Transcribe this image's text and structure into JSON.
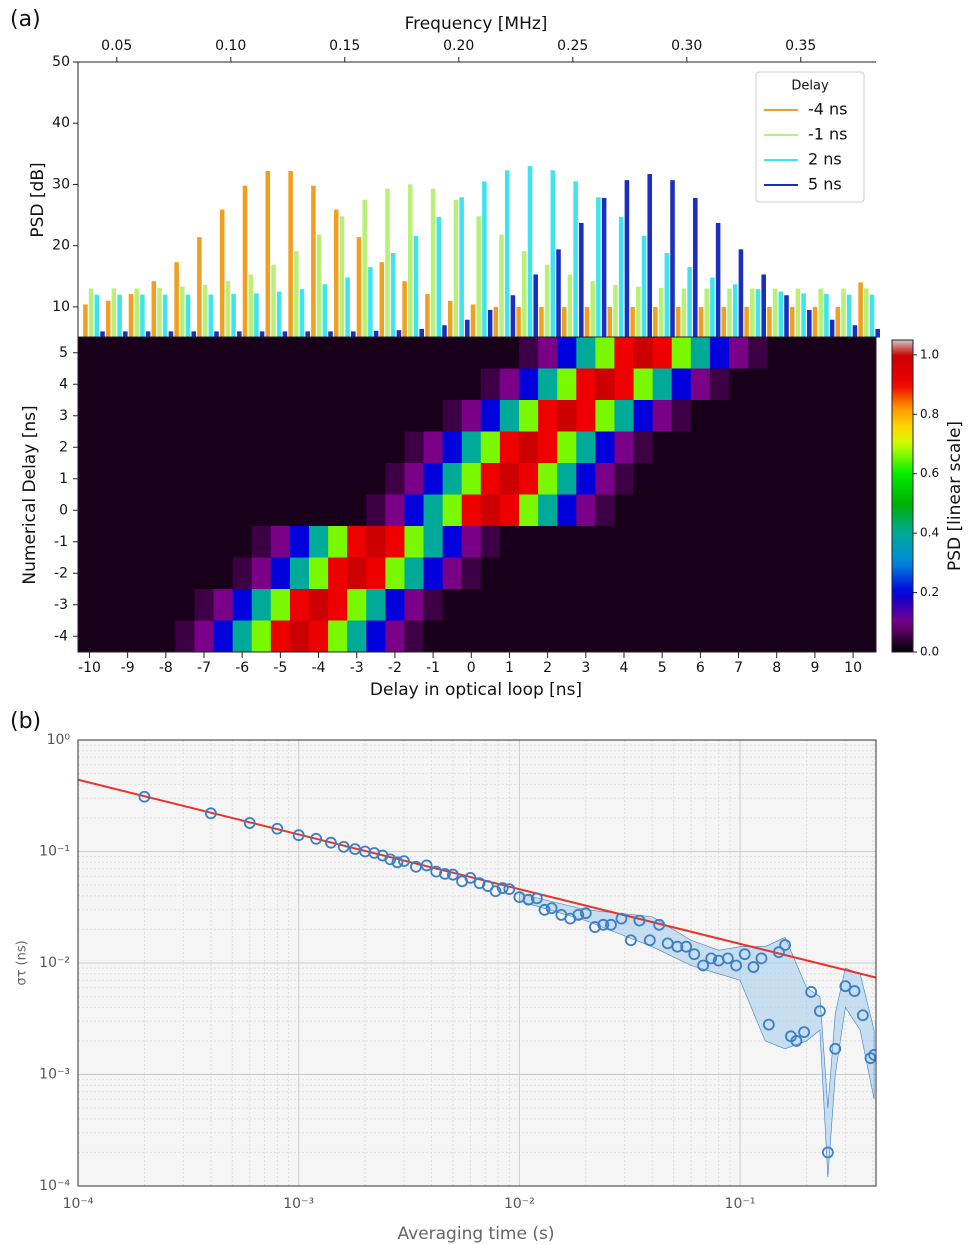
{
  "panel_labels": [
    "(a)",
    "(b)"
  ],
  "chart_data": [
    {
      "type": "bar",
      "xlabel": "Frequency [MHz]",
      "ylabel": "PSD [dB]",
      "xlim": [
        0.033,
        0.383
      ],
      "xticks": [
        0.05,
        {
          "value": 0.1,
          "label": "0.10"
        },
        0.15,
        {
          "value": 0.2,
          "label": "0.20"
        },
        0.25,
        {
          "value": 0.3,
          "label": "0.30"
        },
        0.35
      ],
      "ylim": [
        5,
        50
      ],
      "yticks": [
        10,
        20,
        30,
        40,
        50
      ],
      "legend_title": "Delay",
      "legend": "upper right",
      "x": [
        0.04,
        0.05,
        0.06,
        0.07,
        0.08,
        0.09,
        0.1,
        0.11,
        0.12,
        0.13,
        0.14,
        0.15,
        0.16,
        0.17,
        0.18,
        0.19,
        0.2,
        0.21,
        0.22,
        0.23,
        0.24,
        0.25,
        0.26,
        0.27,
        0.28,
        0.29,
        0.3,
        0.31,
        0.32,
        0.33,
        0.34,
        0.35,
        0.36,
        0.37,
        0.38
      ],
      "series": [
        {
          "name": "-4 ns",
          "color": "#f0a020",
          "values": [
            10.4,
            11.0,
            12.1,
            14.2,
            17.3,
            21.4,
            25.9,
            29.8,
            32.2,
            32.2,
            29.8,
            25.9,
            21.4,
            17.3,
            14.2,
            12.1,
            11.0,
            10.4,
            10,
            10,
            10,
            10,
            10,
            10,
            10,
            10,
            10,
            10,
            10,
            10,
            10,
            10,
            10,
            10,
            14
          ]
        },
        {
          "name": "-1 ns",
          "color": "#b8f078",
          "values": [
            13.0,
            13.0,
            13.0,
            13.1,
            13.3,
            13.6,
            14.2,
            15.3,
            16.9,
            19.1,
            21.8,
            24.8,
            27.5,
            29.3,
            30,
            29.3,
            27.5,
            24.8,
            21.8,
            19.1,
            16.9,
            15.3,
            14.2,
            13.6,
            13.3,
            13.1,
            13,
            13,
            13,
            13,
            13,
            13,
            13,
            13,
            13
          ]
        },
        {
          "name": "2 ns",
          "color": "#40e4f0",
          "values": [
            12,
            12,
            12,
            12,
            12,
            12,
            12.1,
            12.2,
            12.5,
            12.9,
            13.7,
            14.8,
            16.5,
            18.8,
            21.6,
            24.7,
            27.9,
            30.5,
            32.3,
            33,
            32.3,
            30.5,
            27.9,
            24.7,
            21.6,
            18.8,
            16.5,
            14.8,
            13.7,
            12.9,
            12.5,
            12.2,
            12.1,
            12,
            12
          ]
        },
        {
          "name": "5 ns",
          "color": "#1a2ec0",
          "values": [
            6,
            6,
            6,
            6,
            6,
            6,
            6,
            6,
            6,
            6,
            6,
            6.0,
            6.1,
            6.2,
            6.4,
            7.0,
            7.9,
            9.5,
            11.9,
            15.3,
            19.4,
            23.7,
            27.8,
            30.7,
            31.7,
            30.7,
            27.8,
            23.7,
            19.4,
            15.3,
            11.9,
            9.5,
            7.9,
            7.0,
            6.4
          ]
        }
      ]
    },
    {
      "type": "heatmap",
      "xlabel": "Delay in optical loop [ns]",
      "ylabel": "Numerical Delay [ns]",
      "colorbar_label": "PSD [linear scale]",
      "colormap": "nipy_spectral",
      "xlim": [
        -10.3,
        10.6
      ],
      "xticks": [
        -10,
        -9,
        -8,
        -7,
        -6,
        -5,
        -4,
        -3,
        -2,
        -1,
        0,
        1,
        2,
        3,
        4,
        5,
        6,
        7,
        8,
        9,
        10
      ],
      "ylim": [
        -4.5,
        5.5
      ],
      "yticks": [
        -4,
        -3,
        -2,
        -1,
        0,
        1,
        2,
        3,
        4,
        5
      ],
      "clim": [
        0,
        1.05
      ],
      "cticks": [
        {
          "value": 0,
          "label": "0.0"
        },
        0.2,
        0.4,
        0.6,
        0.8,
        {
          "value": 1,
          "label": "1.0"
        }
      ],
      "x": [
        -10.5,
        -10,
        -9.5,
        -9,
        -8.5,
        -8,
        -7.5,
        -7,
        -6.5,
        -6,
        -5.5,
        -5,
        -4.5,
        -4,
        -3.5,
        -3,
        -2.5,
        -2,
        -1.5,
        -1,
        -0.5,
        0,
        0.5,
        1,
        1.5,
        2,
        2.5,
        3,
        3.5,
        4,
        4.5,
        5,
        5.5,
        6,
        6.5,
        7,
        7.5,
        8,
        8.5,
        9,
        9.5,
        10,
        10.5
      ],
      "y": [
        5,
        4,
        3,
        2,
        1,
        0,
        -1,
        -2,
        -3,
        -4
      ],
      "z": [
        [
          0.02,
          0.02,
          0.02,
          0.02,
          0.02,
          0.02,
          0.02,
          0.02,
          0.02,
          0.02,
          0.02,
          0.02,
          0.02,
          0.02,
          0.02,
          0.02,
          0.02,
          0.02,
          0.02,
          0.02,
          0.02,
          0.02,
          0.02,
          0.02,
          0.05,
          0.1,
          0.2,
          0.4,
          0.66,
          0.9,
          1,
          0.9,
          0.66,
          0.4,
          0.2,
          0.1,
          0.05,
          0.02,
          0.02,
          0.02,
          0.02,
          0.02,
          0.02
        ],
        [
          0.02,
          0.02,
          0.02,
          0.02,
          0.02,
          0.02,
          0.02,
          0.02,
          0.02,
          0.02,
          0.02,
          0.02,
          0.02,
          0.02,
          0.02,
          0.02,
          0.02,
          0.02,
          0.02,
          0.02,
          0.02,
          0.02,
          0.05,
          0.1,
          0.2,
          0.4,
          0.66,
          0.9,
          1,
          0.9,
          0.66,
          0.4,
          0.2,
          0.1,
          0.05,
          0.02,
          0.02,
          0.02,
          0.02,
          0.02,
          0.02,
          0.02,
          0.02
        ],
        [
          0.02,
          0.02,
          0.02,
          0.02,
          0.02,
          0.02,
          0.02,
          0.02,
          0.02,
          0.02,
          0.02,
          0.02,
          0.02,
          0.02,
          0.02,
          0.02,
          0.02,
          0.02,
          0.02,
          0.02,
          0.05,
          0.1,
          0.2,
          0.4,
          0.66,
          0.9,
          1,
          0.9,
          0.66,
          0.4,
          0.2,
          0.1,
          0.05,
          0.02,
          0.02,
          0.02,
          0.02,
          0.02,
          0.02,
          0.02,
          0.02,
          0.02,
          0.02
        ],
        [
          0.02,
          0.02,
          0.02,
          0.02,
          0.02,
          0.02,
          0.02,
          0.02,
          0.02,
          0.02,
          0.02,
          0.02,
          0.02,
          0.02,
          0.02,
          0.02,
          0.02,
          0.02,
          0.05,
          0.1,
          0.2,
          0.4,
          0.66,
          0.9,
          1,
          0.9,
          0.66,
          0.4,
          0.2,
          0.1,
          0.05,
          0.02,
          0.02,
          0.02,
          0.02,
          0.02,
          0.02,
          0.02,
          0.02,
          0.02,
          0.02,
          0.02,
          0.02
        ],
        [
          0.02,
          0.02,
          0.02,
          0.02,
          0.02,
          0.02,
          0.02,
          0.02,
          0.02,
          0.02,
          0.02,
          0.02,
          0.02,
          0.02,
          0.02,
          0.02,
          0.02,
          0.05,
          0.1,
          0.2,
          0.4,
          0.66,
          0.9,
          1,
          0.9,
          0.66,
          0.4,
          0.2,
          0.1,
          0.05,
          0.02,
          0.02,
          0.02,
          0.02,
          0.02,
          0.02,
          0.02,
          0.02,
          0.02,
          0.02,
          0.02,
          0.02,
          0.02
        ],
        [
          0.02,
          0.02,
          0.02,
          0.02,
          0.02,
          0.02,
          0.02,
          0.02,
          0.02,
          0.02,
          0.02,
          0.02,
          0.02,
          0.02,
          0.02,
          0.02,
          0.05,
          0.1,
          0.2,
          0.4,
          0.66,
          0.9,
          1,
          0.9,
          0.66,
          0.4,
          0.2,
          0.1,
          0.05,
          0.02,
          0.02,
          0.02,
          0.02,
          0.02,
          0.02,
          0.02,
          0.02,
          0.02,
          0.02,
          0.02,
          0.02,
          0.02,
          0.02
        ],
        [
          0.02,
          0.02,
          0.02,
          0.02,
          0.02,
          0.02,
          0.02,
          0.02,
          0.02,
          0.02,
          0.05,
          0.1,
          0.2,
          0.4,
          0.66,
          0.9,
          1,
          0.9,
          0.66,
          0.4,
          0.2,
          0.1,
          0.05,
          0.02,
          0.02,
          0.02,
          0.02,
          0.02,
          0.02,
          0.02,
          0.02,
          0.02,
          0.02,
          0.02,
          0.02,
          0.02,
          0.02,
          0.02,
          0.02,
          0.02,
          0.02,
          0.02,
          0.02
        ],
        [
          0.02,
          0.02,
          0.02,
          0.02,
          0.02,
          0.02,
          0.02,
          0.02,
          0.02,
          0.05,
          0.1,
          0.2,
          0.4,
          0.66,
          0.9,
          1,
          0.9,
          0.66,
          0.4,
          0.2,
          0.1,
          0.05,
          0.02,
          0.02,
          0.02,
          0.02,
          0.02,
          0.02,
          0.02,
          0.02,
          0.02,
          0.02,
          0.02,
          0.02,
          0.02,
          0.02,
          0.02,
          0.02,
          0.02,
          0.02,
          0.02,
          0.02,
          0.02
        ],
        [
          0.02,
          0.02,
          0.02,
          0.02,
          0.02,
          0.02,
          0.02,
          0.05,
          0.1,
          0.2,
          0.4,
          0.66,
          0.9,
          1,
          0.9,
          0.66,
          0.4,
          0.2,
          0.1,
          0.05,
          0.02,
          0.02,
          0.02,
          0.02,
          0.02,
          0.02,
          0.02,
          0.02,
          0.02,
          0.02,
          0.02,
          0.02,
          0.02,
          0.02,
          0.02,
          0.02,
          0.02,
          0.02,
          0.02,
          0.02,
          0.02,
          0.02,
          0.02
        ],
        [
          0.02,
          0.02,
          0.02,
          0.02,
          0.02,
          0.02,
          0.05,
          0.1,
          0.2,
          0.4,
          0.66,
          0.9,
          1,
          0.9,
          0.66,
          0.4,
          0.2,
          0.1,
          0.05,
          0.02,
          0.02,
          0.02,
          0.02,
          0.02,
          0.02,
          0.02,
          0.02,
          0.02,
          0.02,
          0.02,
          0.02,
          0.02,
          0.02,
          0.02,
          0.02,
          0.02,
          0.02,
          0.02,
          0.02,
          0.02,
          0.02,
          0.02,
          0.02
        ]
      ]
    },
    {
      "type": "scatter",
      "xlabel": "Averaging time (s)",
      "ylabel": "στ (ns)",
      "xscale": "log",
      "yscale": "log",
      "grid": true,
      "xlim": [
        0.0001,
        0.413
      ],
      "xticks": [
        {
          "value": 0.0001,
          "label": "10⁻⁴"
        },
        {
          "value": 0.001,
          "label": "10⁻³"
        },
        {
          "value": 0.01,
          "label": "10⁻²"
        },
        {
          "value": 0.1,
          "label": "10⁻¹"
        }
      ],
      "ylim": [
        0.0001,
        1
      ],
      "yticks": [
        {
          "value": 0.0001,
          "label": "10⁻⁴"
        },
        {
          "value": 0.001,
          "label": "10⁻³"
        },
        {
          "value": 0.01,
          "label": "10⁻²"
        },
        {
          "value": 0.1,
          "label": "10⁻¹"
        },
        {
          "value": 1,
          "label": "10⁰"
        }
      ],
      "color": "#3a7fc4",
      "x": [
        0.0002,
        0.0004,
        0.0006,
        0.0008,
        0.001,
        0.0012,
        0.0014,
        0.0016,
        0.0018,
        0.002,
        0.0022,
        0.0024,
        0.0026,
        0.0028,
        0.003,
        0.0034,
        0.0038,
        0.0042,
        0.0046,
        0.005,
        0.0055,
        0.006,
        0.0066,
        0.0072,
        0.0078,
        0.0084,
        0.009,
        0.01,
        0.011,
        0.012,
        0.013,
        0.014,
        0.0155,
        0.017,
        0.0185,
        0.02,
        0.022,
        0.024,
        0.026,
        0.029,
        0.032,
        0.035,
        0.039,
        0.043,
        0.047,
        0.052,
        0.057,
        0.062,
        0.068,
        0.074,
        0.08,
        0.088,
        0.096,
        0.105,
        0.115,
        0.125,
        0.135,
        0.15,
        0.16,
        0.17,
        0.18,
        0.195,
        0.21,
        0.23,
        0.25,
        0.27,
        0.3,
        0.33,
        0.36,
        0.39,
        0.405
      ],
      "y": [
        0.31,
        0.22,
        0.18,
        0.16,
        0.14,
        0.13,
        0.12,
        0.11,
        0.105,
        0.1,
        0.097,
        0.092,
        0.085,
        0.08,
        0.082,
        0.073,
        0.075,
        0.066,
        0.063,
        0.062,
        0.054,
        0.058,
        0.052,
        0.049,
        0.044,
        0.047,
        0.046,
        0.039,
        0.037,
        0.038,
        0.03,
        0.031,
        0.027,
        0.025,
        0.027,
        0.028,
        0.021,
        0.022,
        0.022,
        0.025,
        0.016,
        0.024,
        0.016,
        0.022,
        0.015,
        0.014,
        0.014,
        0.012,
        0.0095,
        0.011,
        0.0105,
        0.011,
        0.0095,
        0.012,
        0.0092,
        0.011,
        0.0028,
        0.0125,
        0.0145,
        0.0022,
        0.002,
        0.0024,
        0.0055,
        0.0037,
        0.0002,
        0.0017,
        0.0062,
        0.0056,
        0.0034,
        0.0014,
        0.0015
      ],
      "fit": {
        "color": "#e8322a",
        "x": [
          0.0001,
          0.413
        ],
        "y": [
          0.44,
          0.0074
        ]
      },
      "band": {
        "color": "#a8cfee",
        "x": [
          0.01,
          0.02,
          0.04,
          0.06,
          0.08,
          0.1,
          0.13,
          0.16,
          0.2,
          0.23,
          0.25,
          0.27,
          0.3,
          0.35,
          0.405
        ],
        "lower": [
          0.036,
          0.024,
          0.014,
          0.0095,
          0.008,
          0.007,
          0.002,
          0.0017,
          0.002,
          0.0025,
          0.00012,
          0.001,
          0.004,
          0.0025,
          0.0006
        ],
        "upper": [
          0.042,
          0.03,
          0.026,
          0.016,
          0.013,
          0.014,
          0.014,
          0.017,
          0.006,
          0.005,
          0.0005,
          0.0035,
          0.009,
          0.008,
          0.0025
        ]
      }
    }
  ]
}
